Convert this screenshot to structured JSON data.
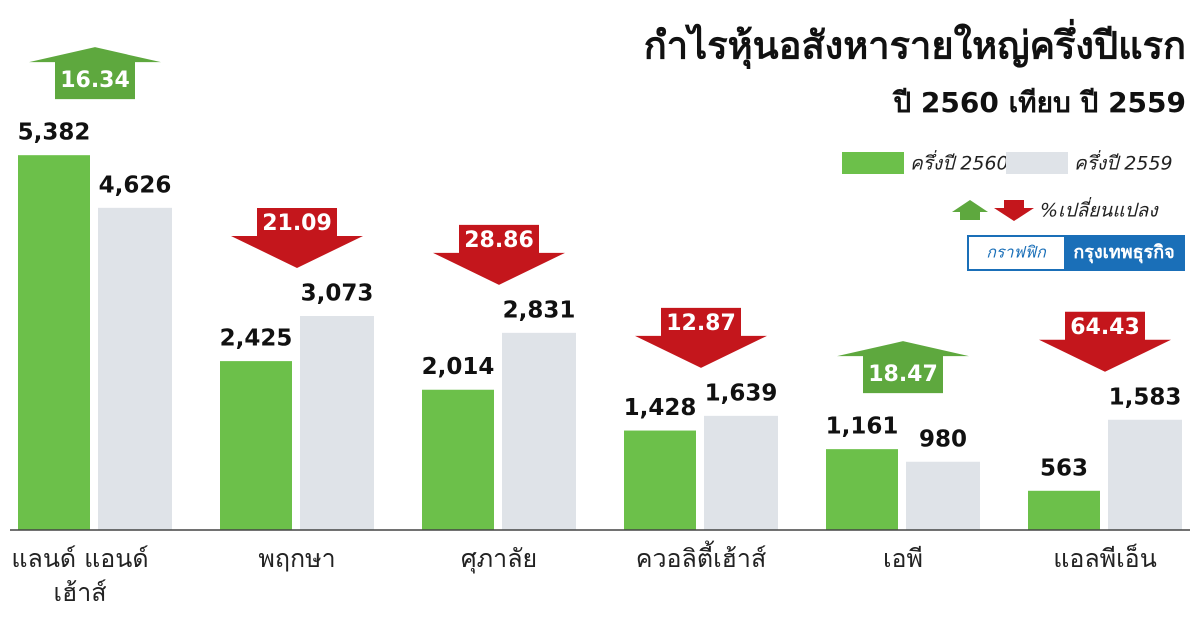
{
  "chart_data": {
    "type": "bar",
    "title": "กำไรหุ้นอสังหารายใหญ่ครึ่งปีแรก",
    "subtitle": "ปี 2560 เทียบ ปี 2559",
    "categories": [
      "แลนด์ แอนด์ เฮ้าส์",
      "พฤกษา",
      "ศุภาลัย",
      "ควอลิตี้เฮ้าส์",
      "เอพี",
      "แอลพีเอ็น"
    ],
    "series": [
      {
        "name": "ครึ่งปี 2560",
        "color": "#6cc04a",
        "values": [
          5382,
          2425,
          2014,
          1428,
          1161,
          563
        ],
        "value_labels": [
          "5,382",
          "2,425",
          "2,014",
          "1,428",
          "1,161",
          "563"
        ]
      },
      {
        "name": "ครึ่งปี 2559",
        "color": "#dfe3e8",
        "values": [
          4626,
          3073,
          2831,
          1639,
          980,
          1583
        ],
        "value_labels": [
          "4,626",
          "3,073",
          "2,831",
          "1,639",
          "980",
          "1,583"
        ]
      }
    ],
    "change": {
      "name": "%เปลี่ยนแปลง",
      "values": [
        16.34,
        21.09,
        28.86,
        12.87,
        18.47,
        64.43
      ],
      "direction": [
        "up",
        "down",
        "down",
        "down",
        "up",
        "down"
      ],
      "up_color": "#5ea83e",
      "down_color": "#c4161c"
    },
    "ylim": [
      0,
      5600
    ],
    "credit": {
      "left": "กราฟฟิก",
      "right": "กรุงเทพธุรกิจ"
    }
  }
}
